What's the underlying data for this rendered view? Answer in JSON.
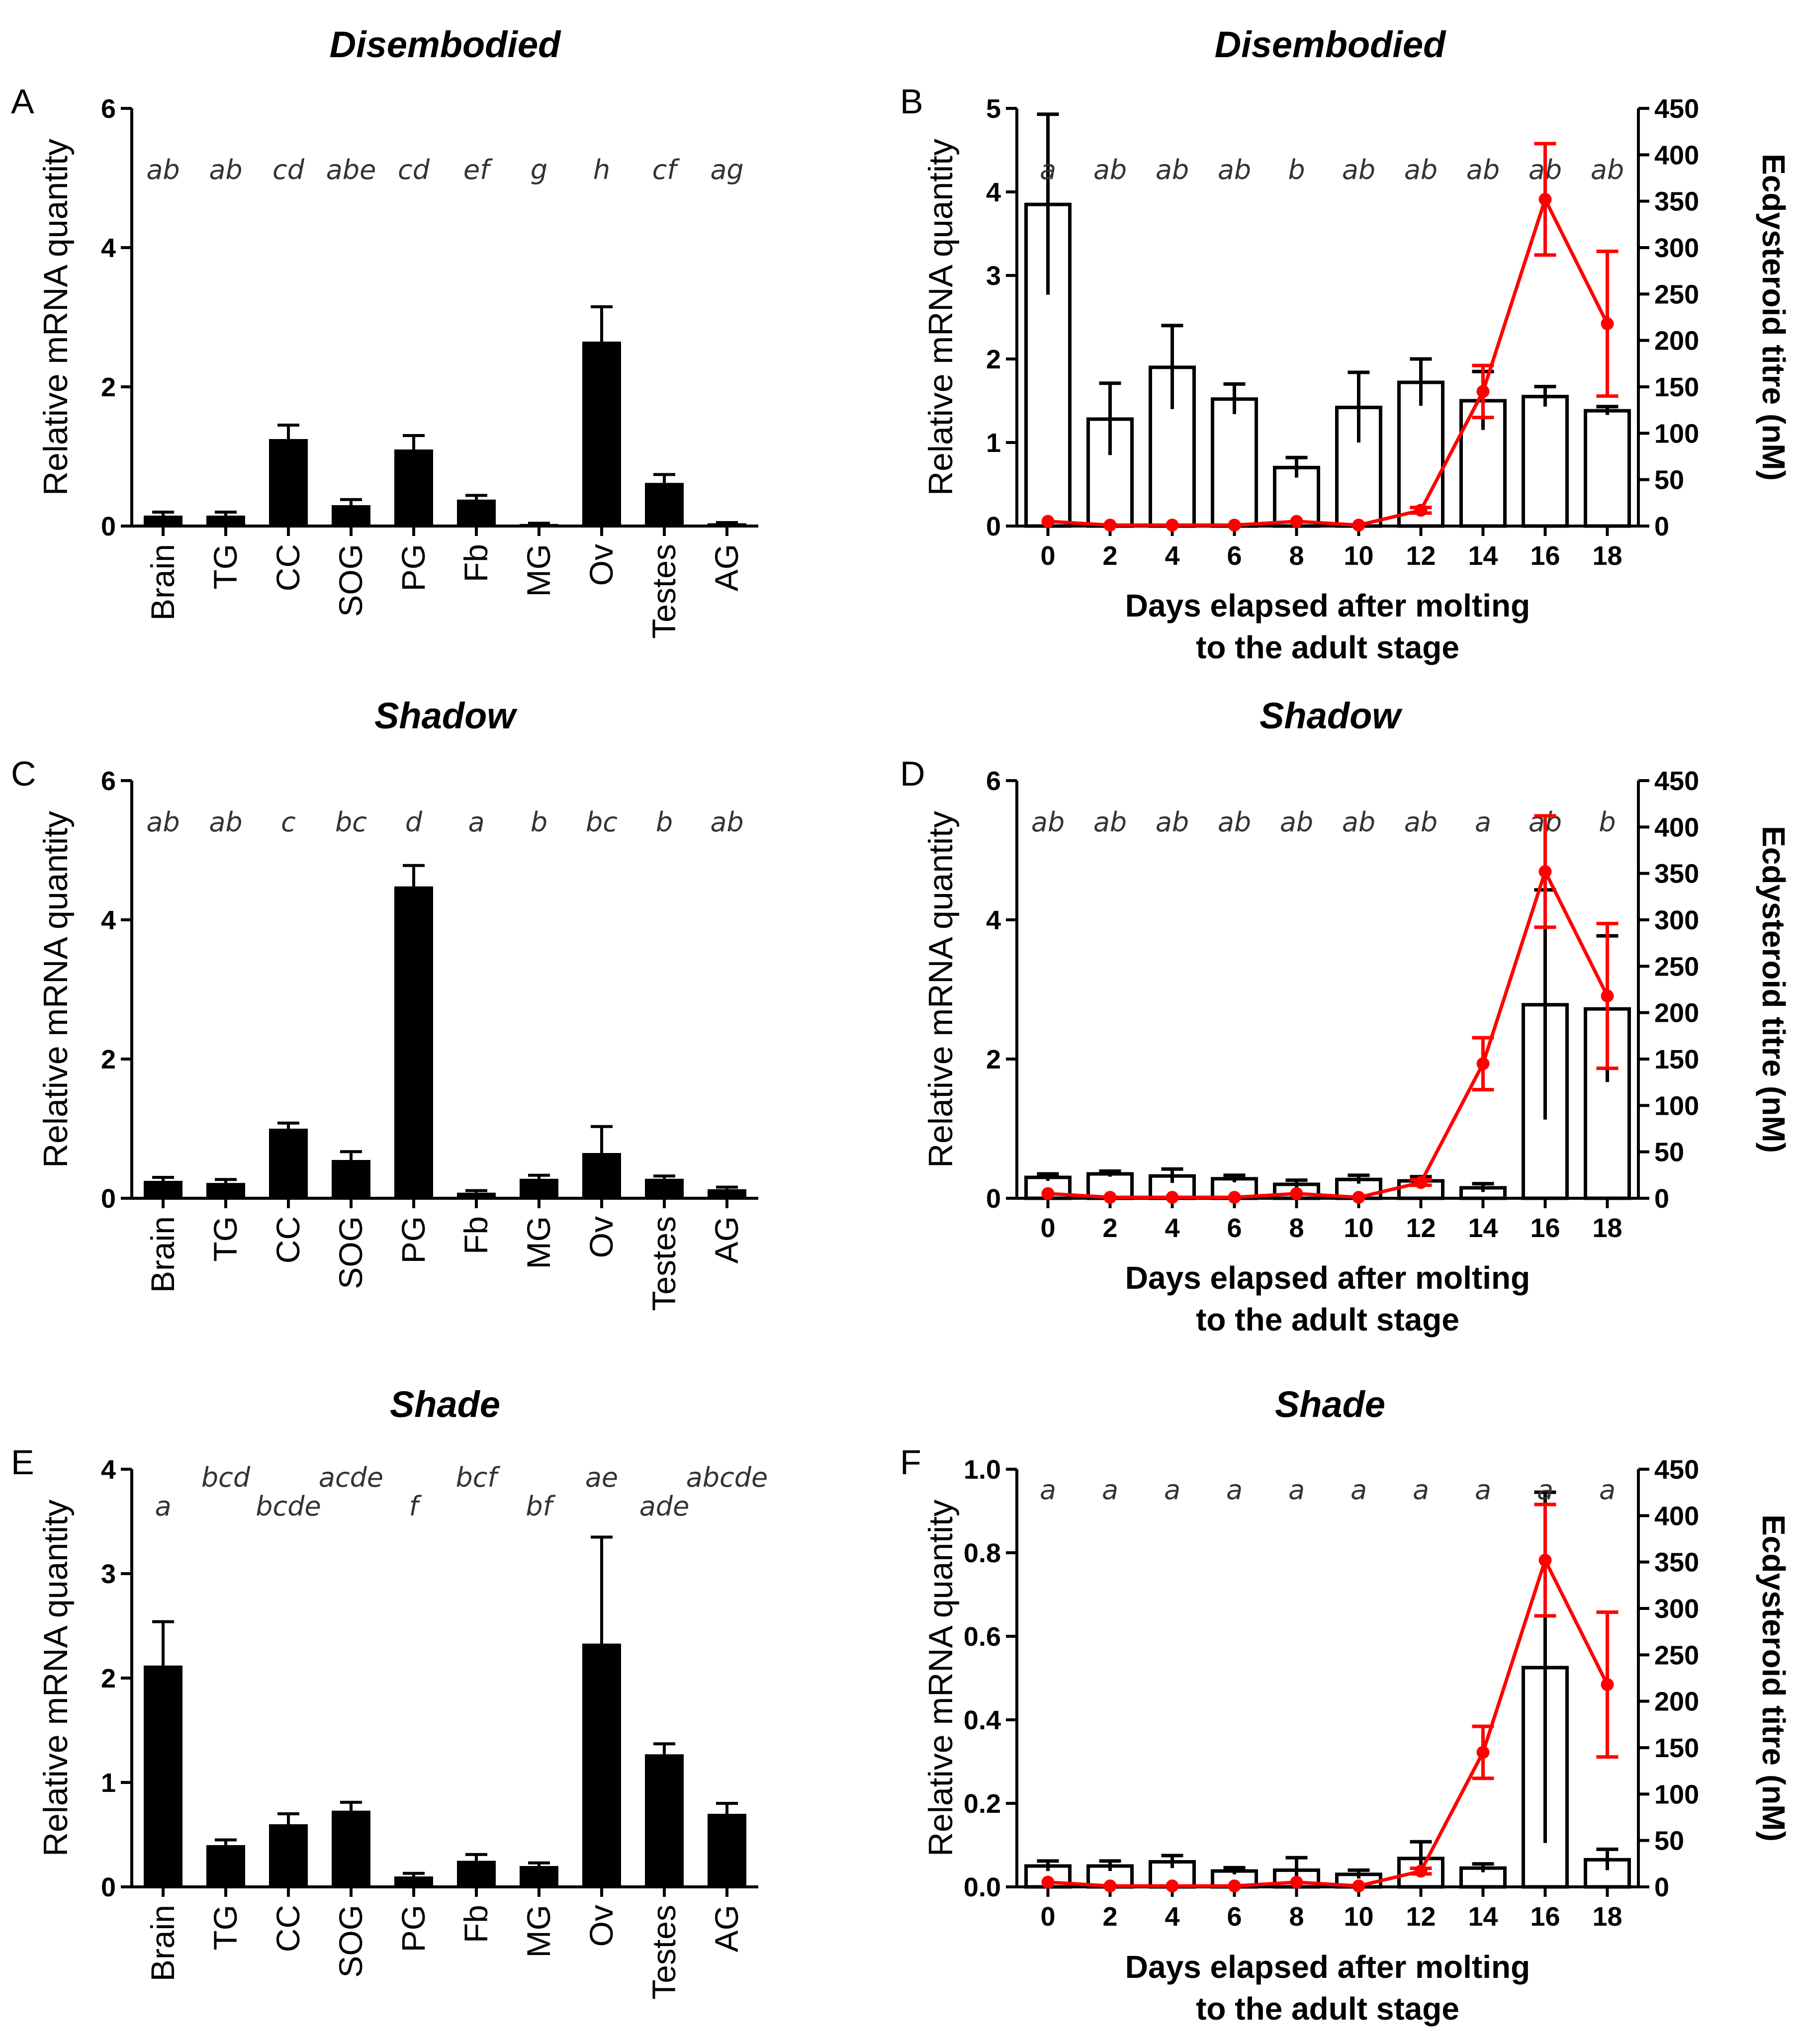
{
  "palette": {
    "bar": "#000000",
    "hollow": "#ffffff",
    "titre": "#ff0000",
    "axis": "#000000",
    "sig": "#333333"
  },
  "chart_data": [
    {
      "panel": "A",
      "title": "Disembodied",
      "type": "bar",
      "style": "filled",
      "ylabel": "Relative mRNA quantity",
      "ylim": [
        0,
        6
      ],
      "yticks": [
        "0",
        "2",
        "4",
        "6"
      ],
      "categories": [
        "Brain",
        "TG",
        "CC",
        "SOG",
        "PG",
        "Fb",
        "MG",
        "Ov",
        "Testes",
        "AG"
      ],
      "values": [
        0.15,
        0.15,
        1.25,
        0.3,
        1.1,
        0.38,
        0.03,
        2.65,
        0.62,
        0.04
      ],
      "errors": [
        0.05,
        0.05,
        0.2,
        0.08,
        0.2,
        0.06,
        0.01,
        0.5,
        0.12,
        0.01
      ],
      "letters": [
        "ab",
        "ab",
        "cd",
        "abe",
        "cd",
        "ef",
        "g",
        "h",
        "cf",
        "ag"
      ]
    },
    {
      "panel": "B",
      "title": "Disembodied",
      "type": "bar+line",
      "style": "hollow",
      "ylabel": "Relative mRNA quantity",
      "ylim": [
        0,
        5
      ],
      "yticks": [
        "0",
        "1",
        "2",
        "3",
        "4",
        "5"
      ],
      "xlabel": [
        "Days elapsed after molting",
        "to the adult stage"
      ],
      "categories": [
        "0",
        "2",
        "4",
        "6",
        "8",
        "10",
        "12",
        "14",
        "16",
        "18"
      ],
      "values": [
        3.85,
        1.28,
        1.9,
        1.52,
        0.7,
        1.42,
        1.72,
        1.5,
        1.55,
        1.38
      ],
      "errors": [
        1.08,
        0.43,
        0.5,
        0.18,
        0.12,
        0.42,
        0.28,
        0.35,
        0.12,
        0.05
      ],
      "letters": [
        "a",
        "ab",
        "ab",
        "ab",
        "b",
        "ab",
        "ab",
        "ab",
        "ab",
        "ab"
      ],
      "y2label": "Ecdysteroid titre (nM)",
      "y2lim": [
        0,
        450
      ],
      "y2ticks": [
        "0",
        "50",
        "100",
        "150",
        "200",
        "250",
        "300",
        "350",
        "400",
        "450"
      ],
      "series": [
        {
          "name": "Ecdysteroid titre (nM)",
          "values": [
            5,
            1,
            1,
            1,
            5,
            1,
            17,
            145,
            352,
            218
          ],
          "errors": [
            0,
            0,
            0,
            0,
            0,
            0,
            3,
            28,
            60,
            78
          ]
        }
      ]
    },
    {
      "panel": "C",
      "title": "Shadow",
      "type": "bar",
      "style": "filled",
      "ylabel": "Relative mRNA quantity",
      "ylim": [
        0,
        6
      ],
      "yticks": [
        "0",
        "2",
        "4",
        "6"
      ],
      "categories": [
        "Brain",
        "TG",
        "CC",
        "SOG",
        "PG",
        "Fb",
        "MG",
        "Ov",
        "Testes",
        "AG"
      ],
      "values": [
        0.25,
        0.22,
        1.0,
        0.55,
        4.48,
        0.08,
        0.28,
        0.65,
        0.28,
        0.13
      ],
      "errors": [
        0.05,
        0.05,
        0.08,
        0.12,
        0.3,
        0.03,
        0.05,
        0.38,
        0.04,
        0.03
      ],
      "letters": [
        "ab",
        "ab",
        "c",
        "bc",
        "d",
        "a",
        "b",
        "bc",
        "b",
        "ab"
      ]
    },
    {
      "panel": "D",
      "title": "Shadow",
      "type": "bar+line",
      "style": "hollow",
      "ylabel": "Relative mRNA quantity",
      "ylim": [
        0,
        6
      ],
      "yticks": [
        "0",
        "2",
        "4",
        "6"
      ],
      "xlabel": [
        "Days elapsed after molting",
        "to the adult stage"
      ],
      "categories": [
        "0",
        "2",
        "4",
        "6",
        "8",
        "10",
        "12",
        "14",
        "16",
        "18"
      ],
      "values": [
        0.3,
        0.35,
        0.32,
        0.28,
        0.2,
        0.27,
        0.25,
        0.15,
        2.78,
        2.72
      ],
      "errors": [
        0.05,
        0.04,
        0.1,
        0.05,
        0.06,
        0.06,
        0.06,
        0.06,
        1.65,
        1.05
      ],
      "letters": [
        "ab",
        "ab",
        "ab",
        "ab",
        "ab",
        "ab",
        "ab",
        "a",
        "ab",
        "b"
      ],
      "y2label": "Ecdysteroid titre (nM)",
      "y2lim": [
        0,
        450
      ],
      "y2ticks": [
        "0",
        "50",
        "100",
        "150",
        "200",
        "250",
        "300",
        "350",
        "400",
        "450"
      ],
      "series": [
        {
          "name": "Ecdysteroid titre (nM)",
          "values": [
            5,
            1,
            1,
            1,
            5,
            1,
            17,
            145,
            352,
            218
          ],
          "errors": [
            0,
            0,
            0,
            0,
            0,
            0,
            3,
            28,
            60,
            78
          ]
        }
      ]
    },
    {
      "panel": "E",
      "title": "Shade",
      "type": "bar",
      "style": "filled",
      "ylabel": "Relative mRNA quantity",
      "ylim": [
        0,
        4
      ],
      "yticks": [
        "0",
        "1",
        "2",
        "3",
        "4"
      ],
      "categories": [
        "Brain",
        "TG",
        "CC",
        "SOG",
        "PG",
        "Fb",
        "MG",
        "Ov",
        "Testes",
        "AG"
      ],
      "values": [
        2.12,
        0.4,
        0.6,
        0.73,
        0.1,
        0.25,
        0.2,
        2.33,
        1.27,
        0.7
      ],
      "errors": [
        0.42,
        0.05,
        0.1,
        0.08,
        0.03,
        0.06,
        0.03,
        1.02,
        0.1,
        0.1
      ],
      "letters": [
        "a",
        "bcd",
        "bcde",
        "acde",
        "f",
        "bcf",
        "bf",
        "ae",
        "ade",
        "abcde"
      ],
      "letterRows": [
        1,
        0,
        1,
        0,
        1,
        0,
        1,
        0,
        1,
        0
      ]
    },
    {
      "panel": "F",
      "title": "Shade",
      "type": "bar+line",
      "style": "hollow",
      "ylabel": "Relative mRNA quantity",
      "ylim": [
        0,
        1.0
      ],
      "yticks": [
        "0.0",
        "0.2",
        "0.4",
        "0.6",
        "0.8",
        "1.0"
      ],
      "xlabel": [
        "Days elapsed after molting",
        "to the adult stage"
      ],
      "categories": [
        "0",
        "2",
        "4",
        "6",
        "8",
        "10",
        "12",
        "14",
        "16",
        "18"
      ],
      "values": [
        0.05,
        0.05,
        0.06,
        0.038,
        0.04,
        0.03,
        0.068,
        0.045,
        0.525,
        0.065
      ],
      "errors": [
        0.012,
        0.012,
        0.015,
        0.008,
        0.03,
        0.01,
        0.04,
        0.01,
        0.42,
        0.025
      ],
      "letters": [
        "a",
        "a",
        "a",
        "a",
        "a",
        "a",
        "a",
        "a",
        "a",
        "a"
      ],
      "y2label": "Ecdysteroid titre (nM)",
      "y2lim": [
        0,
        450
      ],
      "y2ticks": [
        "0",
        "50",
        "100",
        "150",
        "200",
        "250",
        "300",
        "350",
        "400",
        "450"
      ],
      "series": [
        {
          "name": "Ecdysteroid titre (nM)",
          "values": [
            5,
            1,
            1,
            1,
            5,
            1,
            17,
            145,
            352,
            218
          ],
          "errors": [
            0,
            0,
            0,
            0,
            0,
            0,
            3,
            28,
            60,
            78
          ]
        }
      ]
    }
  ]
}
